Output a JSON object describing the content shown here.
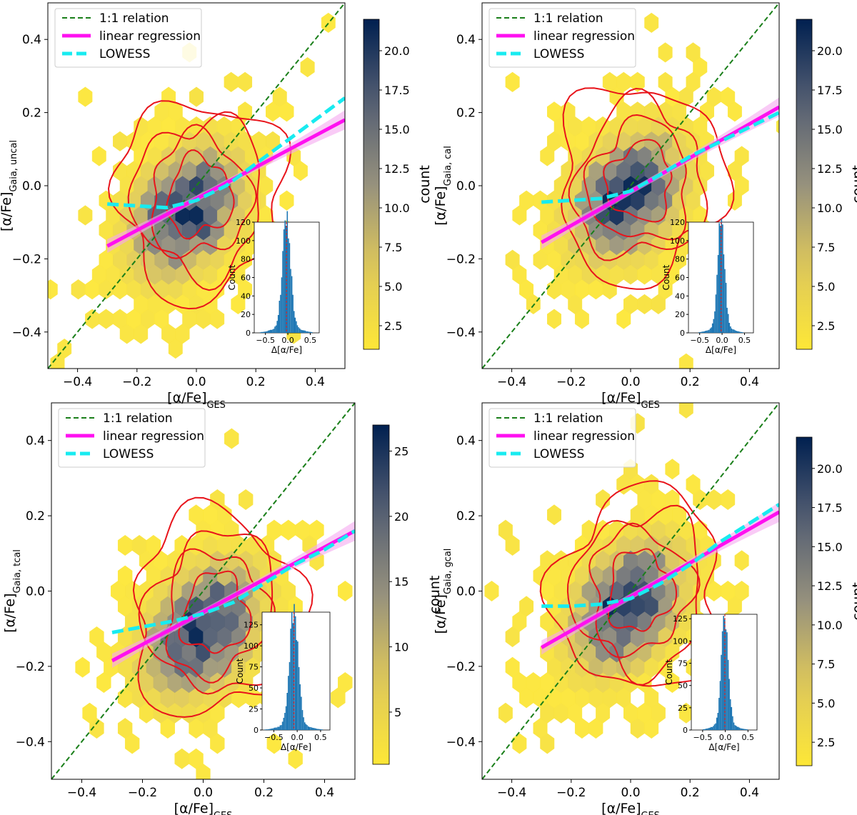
{
  "chart_data": [
    {
      "type": "scatter",
      "subtype": "hexbin-density with contours, regression lines and inset histogram",
      "xlabel": "[α/Fe]",
      "xlabel_sub": "GES",
      "ylabel": "[α/Fe]",
      "ylabel_sub": "Gaia, uncal",
      "xlim": [
        -0.5,
        0.5
      ],
      "ylim": [
        -0.5,
        0.5
      ],
      "xticks": [
        -0.4,
        -0.2,
        0.0,
        0.2,
        0.4
      ],
      "yticks": [
        -0.4,
        -0.2,
        0.0,
        0.2,
        0.4
      ],
      "legend": [
        "1:1 relation",
        "linear regression",
        "LOWESS"
      ],
      "linear_regression": {
        "x": [
          -0.3,
          0.5
        ],
        "y": [
          -0.165,
          0.18
        ]
      },
      "lowess": {
        "x": [
          -0.3,
          -0.2,
          -0.1,
          0.0,
          0.1,
          0.2,
          0.3,
          0.4,
          0.5
        ],
        "y": [
          -0.05,
          -0.055,
          -0.06,
          -0.04,
          0.0,
          0.06,
          0.12,
          0.18,
          0.24
        ]
      },
      "density_center": [
        -0.03,
        -0.07
      ],
      "colorbar": {
        "label": "count",
        "min": 1,
        "max": 22,
        "ticks": [
          "2.5",
          "5.0",
          "7.5",
          "10.0",
          "12.5",
          "15.0",
          "17.5",
          "20.0"
        ]
      },
      "inset_histogram": {
        "xlabel": "Δ[α/Fe]",
        "ylabel": "Count",
        "xticks": [
          "−0.5",
          "0.0",
          "0.5"
        ],
        "yticks": [
          "0",
          "20",
          "40",
          "60",
          "80",
          "100",
          "120"
        ],
        "ymax": 120,
        "median": -0.03,
        "peak": 118,
        "sigma": 0.09
      }
    },
    {
      "type": "scatter",
      "subtype": "hexbin-density with contours, regression lines and inset histogram",
      "xlabel": "[α/Fe]",
      "xlabel_sub": "GES",
      "ylabel": "[α/Fe]",
      "ylabel_sub": "Gaia, cal",
      "xlim": [
        -0.5,
        0.5
      ],
      "ylim": [
        -0.5,
        0.5
      ],
      "xticks": [
        -0.4,
        -0.2,
        0.0,
        0.2,
        0.4
      ],
      "yticks": [
        -0.4,
        -0.2,
        0.0,
        0.2,
        0.4
      ],
      "legend": [
        "1:1 relation",
        "linear regression",
        "LOWESS"
      ],
      "linear_regression": {
        "x": [
          -0.3,
          0.5
        ],
        "y": [
          -0.155,
          0.215
        ]
      },
      "lowess": {
        "x": [
          -0.3,
          -0.2,
          -0.1,
          0.0,
          0.1,
          0.2,
          0.3,
          0.4,
          0.5
        ],
        "y": [
          -0.045,
          -0.04,
          -0.035,
          -0.015,
          0.03,
          0.08,
          0.12,
          0.16,
          0.2
        ]
      },
      "density_center": [
        -0.01,
        -0.03
      ],
      "colorbar": {
        "label": "count",
        "min": 1,
        "max": 22,
        "ticks": [
          "2.5",
          "5.0",
          "7.5",
          "10.0",
          "12.5",
          "15.0",
          "17.5",
          "20.0"
        ]
      },
      "inset_histogram": {
        "xlabel": "Δ[α/Fe]",
        "ylabel": "Count",
        "xticks": [
          "−0.5",
          "0.0",
          "0.5"
        ],
        "yticks": [
          "0",
          "20",
          "40",
          "60",
          "80",
          "100",
          "120"
        ],
        "ymax": 120,
        "median": -0.02,
        "peak": 118,
        "sigma": 0.075
      }
    },
    {
      "type": "scatter",
      "subtype": "hexbin-density with contours, regression lines and inset histogram",
      "xlabel": "[α/Fe]",
      "xlabel_sub": "GES",
      "ylabel": "[α/Fe]",
      "ylabel_sub": "Gaia, tcal",
      "xlim": [
        -0.5,
        0.5
      ],
      "ylim": [
        -0.5,
        0.5
      ],
      "xticks": [
        -0.4,
        -0.2,
        0.0,
        0.2,
        0.4
      ],
      "yticks": [
        -0.4,
        -0.2,
        0.0,
        0.2,
        0.4
      ],
      "legend": [
        "1:1 relation",
        "linear regression",
        "LOWESS"
      ],
      "linear_regression": {
        "x": [
          -0.3,
          0.5
        ],
        "y": [
          -0.185,
          0.16
        ]
      },
      "lowess": {
        "x": [
          -0.3,
          -0.2,
          -0.1,
          0.0,
          0.1,
          0.2,
          0.3,
          0.4,
          0.5
        ],
        "y": [
          -0.11,
          -0.095,
          -0.08,
          -0.06,
          -0.03,
          0.02,
          0.07,
          0.11,
          0.16
        ]
      },
      "density_center": [
        0.0,
        -0.1
      ],
      "colorbar": {
        "label": "count",
        "min": 1,
        "max": 27,
        "ticks": [
          "5",
          "10",
          "15",
          "20",
          "25"
        ]
      },
      "inset_histogram": {
        "xlabel": "Δ[α/Fe]",
        "ylabel": "Count",
        "xticks": [
          "−0.5",
          "0.0",
          "0.5"
        ],
        "yticks": [
          "0",
          "25",
          "50",
          "75",
          "100",
          "125"
        ],
        "ymax": 140,
        "median": -0.07,
        "peak": 133,
        "sigma": 0.09
      }
    },
    {
      "type": "scatter",
      "subtype": "hexbin-density with contours, regression lines and inset histogram",
      "xlabel": "[α/Fe]",
      "xlabel_sub": "GES",
      "ylabel": "[α/Fe]",
      "ylabel_sub": "Gaia, gcal",
      "xlim": [
        -0.5,
        0.5
      ],
      "ylim": [
        -0.5,
        0.5
      ],
      "xticks": [
        -0.4,
        -0.2,
        0.0,
        0.2,
        0.4
      ],
      "yticks": [
        -0.4,
        -0.2,
        0.0,
        0.2,
        0.4
      ],
      "legend": [
        "1:1 relation",
        "linear regression",
        "LOWESS"
      ],
      "linear_regression": {
        "x": [
          -0.3,
          0.5
        ],
        "y": [
          -0.15,
          0.21
        ]
      },
      "lowess": {
        "x": [
          -0.3,
          -0.2,
          -0.1,
          0.0,
          0.1,
          0.2,
          0.3,
          0.4,
          0.5
        ],
        "y": [
          -0.04,
          -0.04,
          -0.035,
          -0.02,
          0.02,
          0.07,
          0.13,
          0.18,
          0.23
        ]
      },
      "density_center": [
        -0.01,
        -0.04
      ],
      "colorbar": {
        "label": "count",
        "min": 1,
        "max": 22,
        "ticks": [
          "2.5",
          "5.0",
          "7.5",
          "10.0",
          "12.5",
          "15.0",
          "17.5",
          "20.0"
        ]
      },
      "inset_histogram": {
        "xlabel": "Δ[α/Fe]",
        "ylabel": "Count",
        "xticks": [
          "−0.5",
          "0.0",
          "0.5"
        ],
        "yticks": [
          "0",
          "25",
          "50",
          "75",
          "100",
          "125"
        ],
        "ymax": 130,
        "median": -0.01,
        "peak": 123,
        "sigma": 0.075
      }
    }
  ]
}
